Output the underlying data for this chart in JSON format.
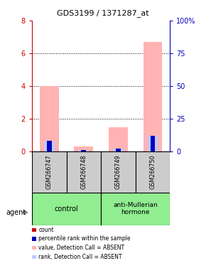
{
  "title": "GDS3199 / 1371287_at",
  "samples": [
    "GSM266747",
    "GSM266748",
    "GSM266749",
    "GSM266750"
  ],
  "absent_value_values": [
    4.0,
    0.3,
    1.5,
    6.7
  ],
  "absent_rank_values": [
    8.0,
    1.0,
    2.0,
    12.0
  ],
  "percentile_values": [
    8.0,
    1.0,
    2.0,
    12.0
  ],
  "count_values": [
    0,
    0,
    0,
    0
  ],
  "pink_color": "#ffb3b3",
  "lightblue_color": "#c0c8ff",
  "red_color": "#cc0000",
  "blue_color": "#0000bb",
  "ylim_left": [
    0,
    8
  ],
  "ylim_right": [
    0,
    100
  ],
  "yticks_left": [
    0,
    2,
    4,
    6,
    8
  ],
  "ytick_labels_left": [
    "0",
    "2",
    "4",
    "6",
    "8"
  ],
  "yticks_right_pct": [
    0,
    25,
    50,
    75,
    100
  ],
  "ytick_labels_right": [
    "0",
    "25",
    "50",
    "75",
    "100%"
  ],
  "left_axis_color": "#cc0000",
  "right_axis_color": "#0000bb",
  "sample_box_color": "#cccccc",
  "group_box_color": "#90ee90",
  "legend_items": [
    {
      "label": "count",
      "color": "#cc0000"
    },
    {
      "label": "percentile rank within the sample",
      "color": "#0000bb"
    },
    {
      "label": "value, Detection Call = ABSENT",
      "color": "#ffb3b3"
    },
    {
      "label": "rank, Detection Call = ABSENT",
      "color": "#c0c8ff"
    }
  ],
  "agent_label": "agent",
  "background_color": "#ffffff"
}
